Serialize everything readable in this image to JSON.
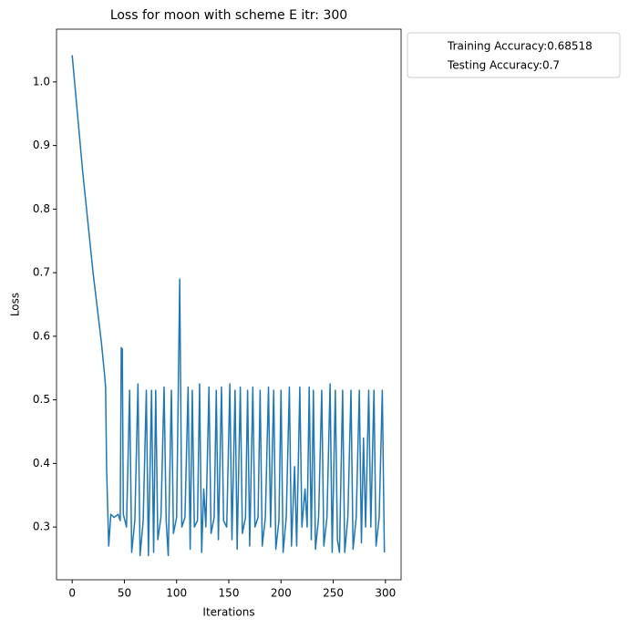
{
  "chart_data": {
    "type": "line",
    "title": "Loss for moon with scheme E itr: 300",
    "xlabel": "Iterations",
    "ylabel": "Loss",
    "x": [
      0,
      10,
      20,
      28,
      31,
      32,
      33,
      35,
      37,
      40,
      44,
      46,
      47,
      48,
      49,
      52,
      55,
      57,
      60,
      63,
      65,
      68,
      71,
      73,
      76,
      78,
      80,
      82,
      85,
      88,
      90,
      92,
      95,
      97,
      100,
      103,
      105,
      108,
      111,
      113,
      115,
      117,
      120,
      122,
      124,
      126,
      128,
      131,
      133,
      136,
      138,
      140,
      143,
      145,
      148,
      151,
      153,
      156,
      158,
      161,
      163,
      166,
      168,
      170,
      173,
      175,
      178,
      180,
      182,
      185,
      188,
      190,
      193,
      195,
      198,
      200,
      202,
      205,
      208,
      210,
      213,
      215,
      218,
      220,
      223,
      225,
      227,
      229,
      231,
      233,
      236,
      239,
      241,
      244,
      247,
      249,
      252,
      254,
      256,
      259,
      261,
      264,
      267,
      269,
      272,
      275,
      277,
      279,
      281,
      284,
      286,
      289,
      291,
      294,
      297,
      299
    ],
    "series": [
      {
        "name": "Loss",
        "color": "#1f77b4",
        "values": [
          1.042,
          0.86,
          0.7,
          0.59,
          0.54,
          0.52,
          0.39,
          0.27,
          0.32,
          0.315,
          0.32,
          0.31,
          0.582,
          0.58,
          0.32,
          0.3,
          0.515,
          0.26,
          0.31,
          0.525,
          0.255,
          0.31,
          0.515,
          0.255,
          0.515,
          0.26,
          0.515,
          0.28,
          0.315,
          0.52,
          0.31,
          0.255,
          0.515,
          0.29,
          0.315,
          0.69,
          0.3,
          0.315,
          0.52,
          0.265,
          0.515,
          0.3,
          0.31,
          0.525,
          0.26,
          0.36,
          0.3,
          0.52,
          0.29,
          0.315,
          0.515,
          0.28,
          0.52,
          0.31,
          0.3,
          0.525,
          0.28,
          0.515,
          0.265,
          0.52,
          0.29,
          0.315,
          0.515,
          0.27,
          0.52,
          0.3,
          0.315,
          0.515,
          0.27,
          0.315,
          0.52,
          0.3,
          0.515,
          0.265,
          0.31,
          0.515,
          0.26,
          0.315,
          0.52,
          0.27,
          0.395,
          0.27,
          0.52,
          0.3,
          0.36,
          0.3,
          0.52,
          0.28,
          0.515,
          0.265,
          0.315,
          0.515,
          0.27,
          0.315,
          0.525,
          0.26,
          0.515,
          0.28,
          0.26,
          0.515,
          0.26,
          0.315,
          0.515,
          0.265,
          0.315,
          0.515,
          0.275,
          0.44,
          0.3,
          0.515,
          0.3,
          0.515,
          0.27,
          0.315,
          0.515,
          0.26
        ]
      }
    ],
    "legend": [
      "Training Accuracy:0.68518",
      "Testing Accuracy:0.7"
    ],
    "xlim": [
      -15,
      315
    ],
    "xticks": [
      0,
      50,
      100,
      150,
      200,
      250,
      300
    ],
    "ylim": [
      0.217,
      1.083
    ],
    "yticks": [
      0.3,
      0.4,
      0.5,
      0.6,
      0.7,
      0.8,
      0.9,
      {
        "value": 1,
        "label": "1.0"
      }
    ],
    "grid": false
  }
}
